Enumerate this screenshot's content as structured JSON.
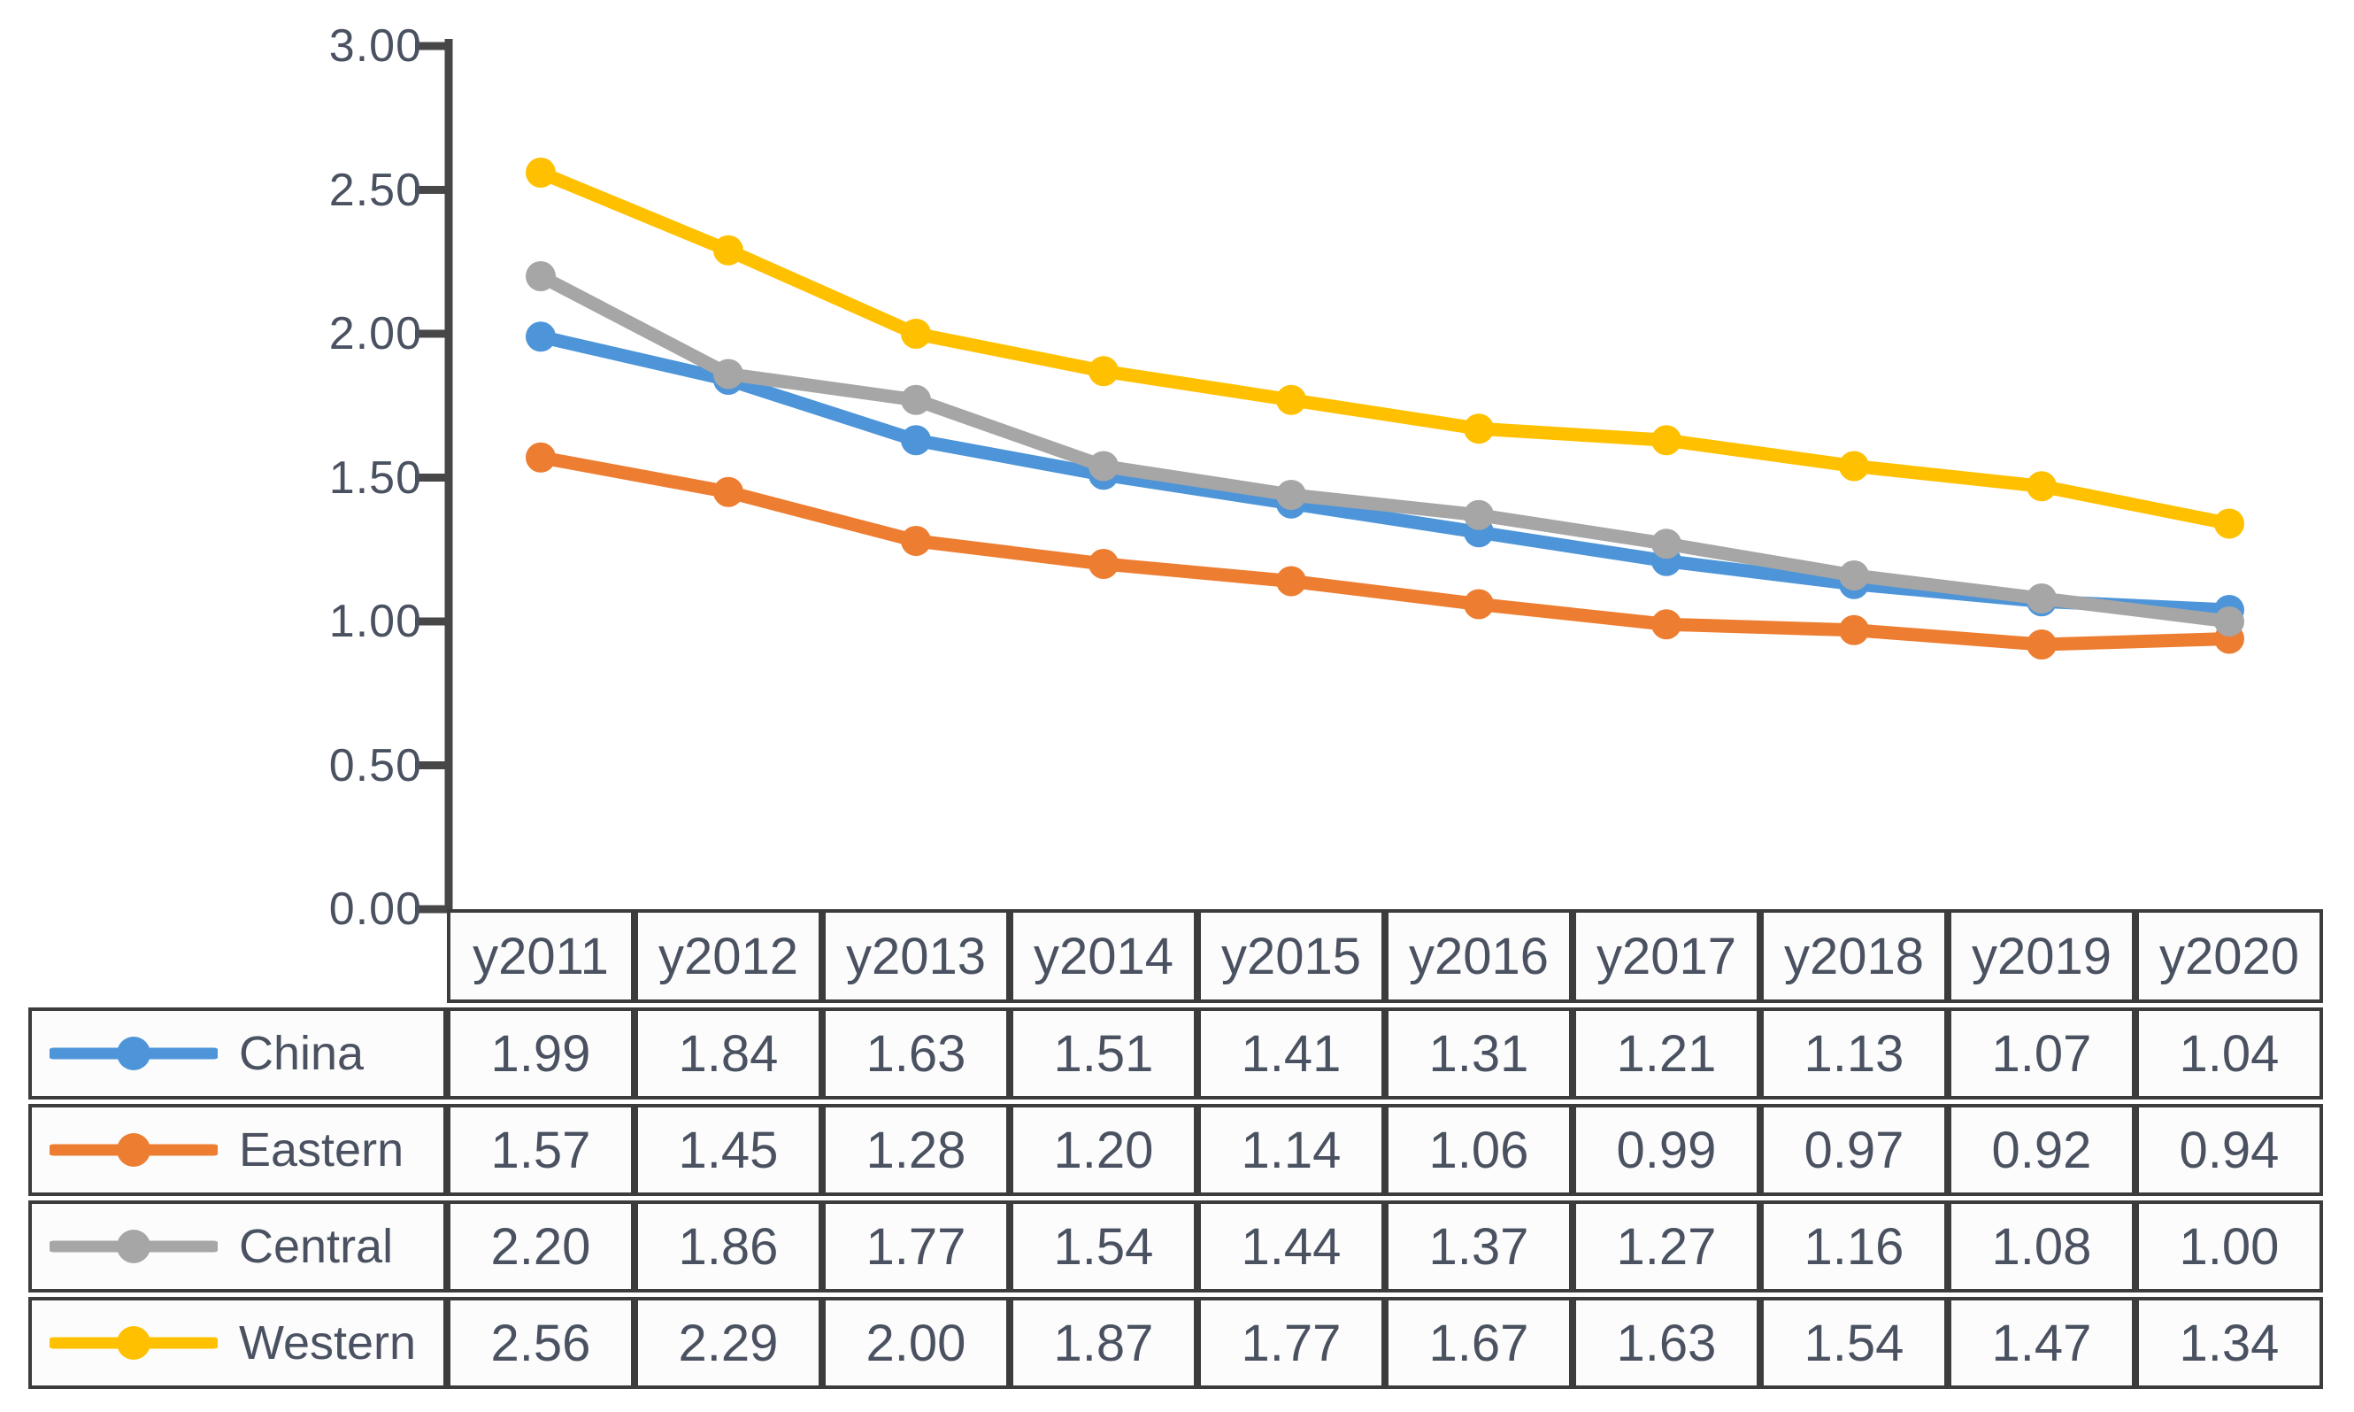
{
  "chart_data": {
    "type": "line",
    "title": "",
    "xlabel": "",
    "ylabel": "",
    "x_categories": [
      "y2011",
      "y2012",
      "y2013",
      "y2014",
      "y2015",
      "y2016",
      "y2017",
      "y2018",
      "y2019",
      "y2020"
    ],
    "series": [
      {
        "name": "China",
        "color": "#4D95D8",
        "values": [
          1.99,
          1.84,
          1.63,
          1.51,
          1.41,
          1.31,
          1.21,
          1.13,
          1.07,
          1.04
        ]
      },
      {
        "name": "Eastern",
        "color": "#ED7D31",
        "values": [
          1.57,
          1.45,
          1.28,
          1.2,
          1.14,
          1.06,
          0.99,
          0.97,
          0.92,
          0.94
        ]
      },
      {
        "name": "Central",
        "color": "#A6A6A6",
        "values": [
          2.2,
          1.86,
          1.77,
          1.54,
          1.44,
          1.37,
          1.27,
          1.16,
          1.08,
          1.0
        ]
      },
      {
        "name": "Western",
        "color": "#FFC000",
        "values": [
          2.56,
          2.29,
          2.0,
          1.87,
          1.77,
          1.67,
          1.63,
          1.54,
          1.47,
          1.34
        ]
      }
    ],
    "ylim": [
      0,
      3
    ],
    "ytick_labels": [
      "0.00",
      "0.50",
      "1.00",
      "1.50",
      "2.00",
      "2.50",
      "3.00"
    ],
    "grid": false,
    "legend_position": "table-left",
    "value_format_decimals": 2,
    "colors": {
      "axis": "#474747",
      "table_border": "#3c3c3c",
      "text": "#4a5160",
      "cell_background": "#fcfcfc"
    }
  }
}
